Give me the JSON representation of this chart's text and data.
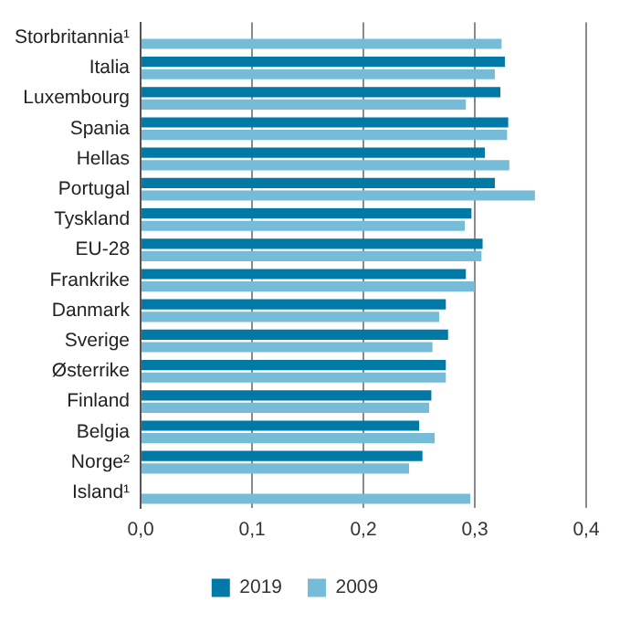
{
  "chart_data": {
    "type": "bar",
    "orientation": "horizontal",
    "categories": [
      "Storbritannia¹",
      "Italia",
      "Luxembourg",
      "Spania",
      "Hellas",
      "Portugal",
      "Tyskland",
      "EU-28",
      "Frankrike",
      "Danmark",
      "Sverige",
      "Østerrike",
      "Finland",
      "Belgia",
      "Norge²",
      "Island¹"
    ],
    "series": [
      {
        "name": "2019",
        "color": "#0079a6",
        "values": [
          null,
          0.327,
          0.323,
          0.33,
          0.309,
          0.318,
          0.297,
          0.307,
          0.292,
          0.274,
          0.276,
          0.274,
          0.261,
          0.25,
          0.253,
          null
        ]
      },
      {
        "name": "2009",
        "color": "#76bcd8",
        "values": [
          0.324,
          0.318,
          0.292,
          0.329,
          0.331,
          0.354,
          0.291,
          0.306,
          0.3,
          0.268,
          0.262,
          0.274,
          0.259,
          0.264,
          0.241,
          0.296
        ]
      }
    ],
    "xlim": [
      0,
      0.4
    ],
    "xticks": [
      {
        "value": 0,
        "label": "0,0"
      },
      {
        "value": 0.1,
        "label": "0,1"
      },
      {
        "value": 0.2,
        "label": "0,2"
      },
      {
        "value": 0.3,
        "label": "0,3"
      },
      {
        "value": 0.4,
        "label": "0,4"
      }
    ],
    "grid": "x",
    "legend": "bottom"
  }
}
